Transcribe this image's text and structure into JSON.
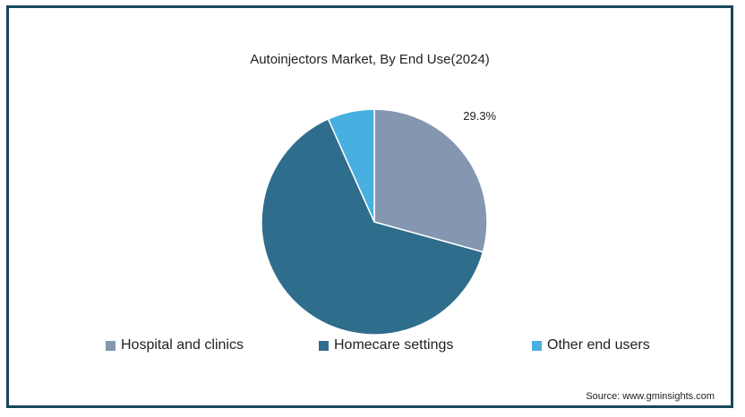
{
  "chart_data": {
    "type": "pie",
    "title": "Autoinjectors Market, By End Use(2024)",
    "categories": [
      "Hospital and clinics",
      "Homecare settings",
      "Other end users"
    ],
    "values": [
      29.3,
      64.0,
      6.7
    ],
    "colors": [
      "#8496b0",
      "#2f6d8c",
      "#48afe1"
    ],
    "data_labels": [
      "29.3%",
      "",
      ""
    ],
    "legend_position": "bottom",
    "start_angle_deg": 0,
    "direction": "clockwise"
  },
  "legend": {
    "items": [
      {
        "label": "Hospital and clinics",
        "color": "#8496b0"
      },
      {
        "label": "Homecare settings",
        "color": "#2f6d8c"
      },
      {
        "label": "Other end users",
        "color": "#48afe1"
      }
    ]
  },
  "source": "Source: www.gminsights.com",
  "colors": {
    "frame": "#17475a",
    "background": "#ffffff",
    "text": "#222222"
  }
}
